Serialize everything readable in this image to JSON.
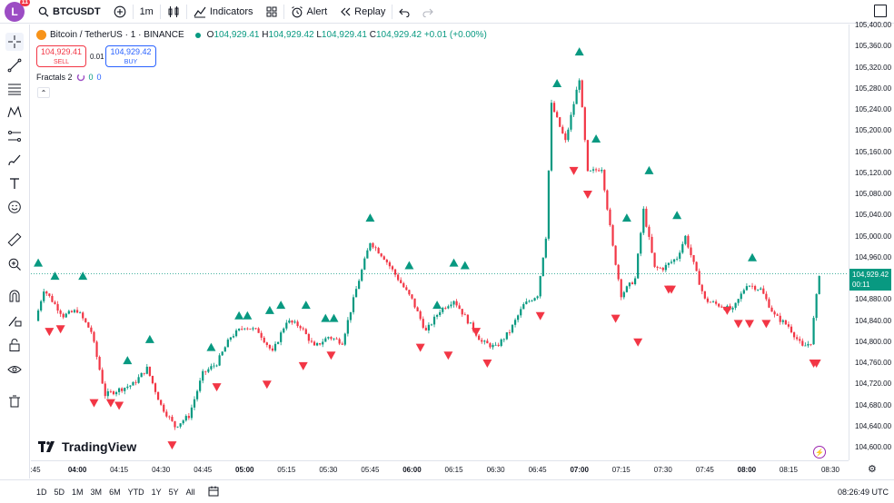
{
  "topbar": {
    "avatar_letter": "L",
    "avatar_badge": "11",
    "symbol": "BTCUSDT",
    "interval": "1m",
    "indicators_label": "Indicators",
    "alert_label": "Alert",
    "replay_label": "Replay"
  },
  "legend": {
    "title": "Bitcoin / TetherUS · 1 · BINANCE",
    "o_label": "O",
    "o": "104,929.41",
    "h_label": "H",
    "h": "104,929.42",
    "l_label": "L",
    "l": "104,929.41",
    "c_label": "C",
    "c": "104,929.42",
    "change": "+0.01 (+0.00%)"
  },
  "trade": {
    "sell_price": "104,929.41",
    "sell_label": "SELL",
    "spread": "0.01",
    "buy_price": "104,929.42",
    "buy_label": "BUY"
  },
  "indicator": {
    "name": "Fractals 2",
    "v1": "0",
    "v2": "0"
  },
  "watermark": "TradingView",
  "price_axis": {
    "ticks": [
      "105,400.00",
      "105,360.00",
      "105,320.00",
      "105,280.00",
      "105,240.00",
      "105,200.00",
      "105,160.00",
      "105,120.00",
      "105,080.00",
      "105,040.00",
      "105,000.00",
      "104,960.00",
      "104,880.00",
      "104,840.00",
      "104,800.00",
      "104,760.00",
      "104,720.00",
      "104,680.00",
      "104,640.00",
      "104,600.00"
    ],
    "last_price": "104,929.42",
    "countdown": "00:11"
  },
  "time_axis": {
    "ticks": [
      {
        "label": ":45",
        "bold": false
      },
      {
        "label": "04:00",
        "bold": true
      },
      {
        "label": "04:15",
        "bold": false
      },
      {
        "label": "04:30",
        "bold": false
      },
      {
        "label": "04:45",
        "bold": false
      },
      {
        "label": "05:00",
        "bold": true
      },
      {
        "label": "05:15",
        "bold": false
      },
      {
        "label": "05:30",
        "bold": false
      },
      {
        "label": "05:45",
        "bold": false
      },
      {
        "label": "06:00",
        "bold": true
      },
      {
        "label": "06:15",
        "bold": false
      },
      {
        "label": "06:30",
        "bold": false
      },
      {
        "label": "06:45",
        "bold": false
      },
      {
        "label": "07:00",
        "bold": true
      },
      {
        "label": "07:15",
        "bold": false
      },
      {
        "label": "07:30",
        "bold": false
      },
      {
        "label": "07:45",
        "bold": false
      },
      {
        "label": "08:00",
        "bold": true
      },
      {
        "label": "08:15",
        "bold": false
      },
      {
        "label": "08:30",
        "bold": false
      }
    ]
  },
  "bottombar": {
    "ranges": [
      "1D",
      "5D",
      "1M",
      "3M",
      "6M",
      "YTD",
      "1Y",
      "5Y",
      "All"
    ],
    "clock": "08:26:49 UTC"
  },
  "colors": {
    "up": "#089981",
    "down": "#f23645",
    "accent": "#2962ff"
  },
  "chart_data": {
    "type": "candlestick",
    "symbol": "BTCUSDT",
    "interval": "1m",
    "ylim": [
      104600,
      105400
    ],
    "x_range": [
      "03:45",
      "08:30"
    ],
    "last_price": 104929.42,
    "close_path": [
      {
        "t": "03:45",
        "p": 104840
      },
      {
        "t": "03:48",
        "p": 104900
      },
      {
        "t": "03:55",
        "p": 104850
      },
      {
        "t": "04:00",
        "p": 104860
      },
      {
        "t": "04:05",
        "p": 104820
      },
      {
        "t": "04:10",
        "p": 104700
      },
      {
        "t": "04:15",
        "p": 104710
      },
      {
        "t": "04:20",
        "p": 104720
      },
      {
        "t": "04:25",
        "p": 104750
      },
      {
        "t": "04:30",
        "p": 104680
      },
      {
        "t": "04:35",
        "p": 104640
      },
      {
        "t": "04:40",
        "p": 104660
      },
      {
        "t": "04:45",
        "p": 104740
      },
      {
        "t": "04:50",
        "p": 104760
      },
      {
        "t": "04:55",
        "p": 104810
      },
      {
        "t": "05:00",
        "p": 104830
      },
      {
        "t": "05:05",
        "p": 104820
      },
      {
        "t": "05:10",
        "p": 104780
      },
      {
        "t": "05:15",
        "p": 104840
      },
      {
        "t": "05:20",
        "p": 104830
      },
      {
        "t": "05:25",
        "p": 104790
      },
      {
        "t": "05:30",
        "p": 104810
      },
      {
        "t": "05:35",
        "p": 104800
      },
      {
        "t": "05:40",
        "p": 104900
      },
      {
        "t": "05:45",
        "p": 104990
      },
      {
        "t": "05:50",
        "p": 104960
      },
      {
        "t": "05:55",
        "p": 104920
      },
      {
        "t": "06:00",
        "p": 104880
      },
      {
        "t": "06:05",
        "p": 104820
      },
      {
        "t": "06:10",
        "p": 104860
      },
      {
        "t": "06:15",
        "p": 104880
      },
      {
        "t": "06:20",
        "p": 104840
      },
      {
        "t": "06:25",
        "p": 104800
      },
      {
        "t": "06:30",
        "p": 104790
      },
      {
        "t": "06:35",
        "p": 104820
      },
      {
        "t": "06:40",
        "p": 104870
      },
      {
        "t": "06:45",
        "p": 104890
      },
      {
        "t": "06:48",
        "p": 105000
      },
      {
        "t": "06:50",
        "p": 105250
      },
      {
        "t": "06:55",
        "p": 105180
      },
      {
        "t": "07:00",
        "p": 105300
      },
      {
        "t": "07:03",
        "p": 105120
      },
      {
        "t": "07:08",
        "p": 105130
      },
      {
        "t": "07:12",
        "p": 104980
      },
      {
        "t": "07:15",
        "p": 104890
      },
      {
        "t": "07:20",
        "p": 104920
      },
      {
        "t": "07:23",
        "p": 105050
      },
      {
        "t": "07:27",
        "p": 104940
      },
      {
        "t": "07:30",
        "p": 104940
      },
      {
        "t": "07:35",
        "p": 104960
      },
      {
        "t": "07:38",
        "p": 105000
      },
      {
        "t": "07:42",
        "p": 104930
      },
      {
        "t": "07:45",
        "p": 104880
      },
      {
        "t": "07:50",
        "p": 104870
      },
      {
        "t": "07:55",
        "p": 104860
      },
      {
        "t": "08:00",
        "p": 104910
      },
      {
        "t": "08:05",
        "p": 104900
      },
      {
        "t": "08:10",
        "p": 104850
      },
      {
        "t": "08:15",
        "p": 104830
      },
      {
        "t": "08:20",
        "p": 104790
      },
      {
        "t": "08:23",
        "p": 104800
      },
      {
        "t": "08:26",
        "p": 104929.42
      }
    ],
    "fractals_up": [
      {
        "t": "03:46",
        "p": 104950
      },
      {
        "t": "03:52",
        "p": 104925
      },
      {
        "t": "04:02",
        "p": 104925
      },
      {
        "t": "04:18",
        "p": 104765
      },
      {
        "t": "04:26",
        "p": 104805
      },
      {
        "t": "04:48",
        "p": 104790
      },
      {
        "t": "04:58",
        "p": 104850
      },
      {
        "t": "05:01",
        "p": 104850
      },
      {
        "t": "05:09",
        "p": 104860
      },
      {
        "t": "05:13",
        "p": 104870
      },
      {
        "t": "05:22",
        "p": 104870
      },
      {
        "t": "05:29",
        "p": 104845
      },
      {
        "t": "05:32",
        "p": 104845
      },
      {
        "t": "05:45",
        "p": 105035
      },
      {
        "t": "05:59",
        "p": 104945
      },
      {
        "t": "06:09",
        "p": 104870
      },
      {
        "t": "06:15",
        "p": 104950
      },
      {
        "t": "06:19",
        "p": 104945
      },
      {
        "t": "06:52",
        "p": 105290
      },
      {
        "t": "07:00",
        "p": 105350
      },
      {
        "t": "07:06",
        "p": 105185
      },
      {
        "t": "07:17",
        "p": 105035
      },
      {
        "t": "07:25",
        "p": 105125
      },
      {
        "t": "07:35",
        "p": 105040
      },
      {
        "t": "08:02",
        "p": 104960
      }
    ],
    "fractals_down": [
      {
        "t": "03:50",
        "p": 104820
      },
      {
        "t": "03:54",
        "p": 104825
      },
      {
        "t": "04:06",
        "p": 104685
      },
      {
        "t": "04:12",
        "p": 104685
      },
      {
        "t": "04:15",
        "p": 104680
      },
      {
        "t": "04:34",
        "p": 104605
      },
      {
        "t": "04:50",
        "p": 104715
      },
      {
        "t": "05:08",
        "p": 104720
      },
      {
        "t": "05:21",
        "p": 104755
      },
      {
        "t": "05:31",
        "p": 104775
      },
      {
        "t": "06:03",
        "p": 104790
      },
      {
        "t": "06:13",
        "p": 104775
      },
      {
        "t": "06:23",
        "p": 104820
      },
      {
        "t": "06:27",
        "p": 104760
      },
      {
        "t": "06:46",
        "p": 104850
      },
      {
        "t": "06:58",
        "p": 105125
      },
      {
        "t": "07:03",
        "p": 105080
      },
      {
        "t": "07:13",
        "p": 104845
      },
      {
        "t": "07:21",
        "p": 104800
      },
      {
        "t": "07:32",
        "p": 104900
      },
      {
        "t": "07:33",
        "p": 104900
      },
      {
        "t": "07:53",
        "p": 104860
      },
      {
        "t": "07:57",
        "p": 104835
      },
      {
        "t": "08:01",
        "p": 104835
      },
      {
        "t": "08:07",
        "p": 104835
      },
      {
        "t": "08:24",
        "p": 104760
      },
      {
        "t": "08:25",
        "p": 104760
      }
    ]
  }
}
